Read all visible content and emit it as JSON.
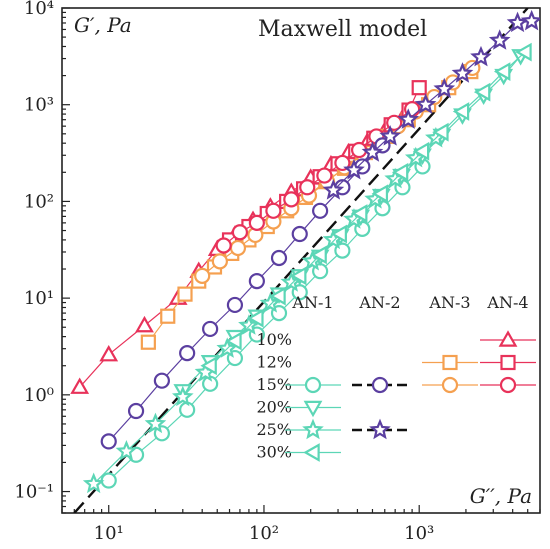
{
  "chart_data": {
    "type": "scatter",
    "title": "",
    "x_axis": {
      "label": "G′′, Pa",
      "scale": "log",
      "range": [
        5,
        6000
      ],
      "ticks": [
        {
          "value": 10,
          "label": "10¹"
        },
        {
          "value": 100,
          "label": "10²"
        },
        {
          "value": 1000,
          "label": "10³"
        }
      ]
    },
    "y_axis": {
      "label": "G′, Pa",
      "scale": "log",
      "range": [
        0.06,
        10000
      ],
      "ticks": [
        {
          "value": 0.1,
          "label": "10⁻¹"
        },
        {
          "value": 1,
          "label": "10⁰"
        },
        {
          "value": 10,
          "label": "10¹"
        },
        {
          "value": 100,
          "label": "10²"
        },
        {
          "value": 1000,
          "label": "10³"
        },
        {
          "value": 10000,
          "label": "10⁴"
        }
      ]
    },
    "grid": false,
    "maxwell_model": {
      "label": "Maxwell model",
      "points": [
        [
          6,
          0.06
        ],
        [
          5000,
          10000
        ]
      ],
      "style": "dashed",
      "color": "#111111"
    },
    "legend": {
      "placement": "bottom-right",
      "columns": [
        "AN-1",
        "AN-2",
        "AN-3",
        "AN-4"
      ],
      "rows": [
        "10%",
        "12%",
        "15%",
        "20%",
        "25%",
        "30%"
      ],
      "entries": [
        {
          "series": "AN-4 10%",
          "row": 0,
          "col": 3
        },
        {
          "series": "AN-3 12%",
          "row": 1,
          "col": 2
        },
        {
          "series": "AN-4 12%",
          "row": 1,
          "col": 3
        },
        {
          "series": "AN-1 15%",
          "row": 2,
          "col": 0
        },
        {
          "series": "AN-2 15%",
          "row": 2,
          "col": 1
        },
        {
          "series": "AN-3 15%",
          "row": 2,
          "col": 2
        },
        {
          "series": "AN-4 15%",
          "row": 2,
          "col": 3
        },
        {
          "series": "AN-1 20%",
          "row": 3,
          "col": 0
        },
        {
          "series": "AN-1 25%",
          "row": 4,
          "col": 0
        },
        {
          "series": "AN-2 25%",
          "row": 4,
          "col": 1
        },
        {
          "series": "AN-1 30%",
          "row": 5,
          "col": 0
        }
      ]
    },
    "series": [
      {
        "name": "AN-4 10%",
        "marker": "triangle",
        "color": "#e8325a",
        "connect": true,
        "linestyle": "solid",
        "points": [
          [
            6.5,
            1.2
          ],
          [
            10,
            2.6
          ],
          [
            17,
            5.2
          ],
          [
            28,
            10
          ],
          [
            38,
            19
          ],
          [
            50,
            32
          ],
          [
            65,
            45
          ],
          [
            85,
            64
          ],
          [
            110,
            88
          ],
          [
            150,
            125
          ],
          [
            200,
            175
          ],
          [
            270,
            240
          ],
          [
            350,
            320
          ],
          [
            470,
            430
          ],
          [
            620,
            590
          ],
          [
            800,
            780
          ]
        ]
      },
      {
        "name": "AN-3 12%",
        "marker": "square",
        "color": "#f5a050",
        "connect": true,
        "linestyle": "solid",
        "points": [
          [
            18,
            3.5
          ],
          [
            24,
            6.5
          ],
          [
            31,
            11
          ],
          [
            38,
            15
          ],
          [
            48,
            21
          ],
          [
            62,
            29
          ],
          [
            80,
            40
          ],
          [
            105,
            55
          ],
          [
            140,
            80
          ],
          [
            185,
            110
          ],
          [
            250,
            160
          ],
          [
            330,
            220
          ],
          [
            450,
            320
          ],
          [
            620,
            470
          ],
          [
            850,
            700
          ],
          [
            1150,
            1000
          ],
          [
            1550,
            1500
          ],
          [
            2150,
            2200
          ]
        ]
      },
      {
        "name": "AN-4 12%",
        "marker": "square",
        "color": "#e8325a",
        "connect": true,
        "linestyle": "solid",
        "points": [
          [
            60,
            40
          ],
          [
            80,
            55
          ],
          [
            105,
            75
          ],
          [
            140,
            100
          ],
          [
            180,
            135
          ],
          [
            230,
            180
          ],
          [
            300,
            245
          ],
          [
            390,
            330
          ],
          [
            510,
            450
          ],
          [
            660,
            620
          ],
          [
            860,
            880
          ],
          [
            1000,
            1500
          ]
        ]
      },
      {
        "name": "AN-3 15%",
        "marker": "circle",
        "color": "#f5a050",
        "connect": true,
        "linestyle": "solid",
        "points": [
          [
            40,
            17
          ],
          [
            52,
            24
          ],
          [
            68,
            33
          ],
          [
            88,
            45
          ],
          [
            115,
            62
          ],
          [
            150,
            85
          ],
          [
            195,
            115
          ],
          [
            255,
            160
          ],
          [
            330,
            225
          ],
          [
            430,
            310
          ],
          [
            560,
            430
          ],
          [
            730,
            600
          ],
          [
            950,
            850
          ],
          [
            1250,
            1200
          ],
          [
            1650,
            1700
          ],
          [
            2200,
            2400
          ]
        ]
      },
      {
        "name": "AN-4 15%",
        "marker": "circle",
        "color": "#e8325a",
        "connect": true,
        "linestyle": "solid",
        "points": [
          [
            55,
            35
          ],
          [
            70,
            48
          ],
          [
            90,
            60
          ],
          [
            115,
            80
          ],
          [
            150,
            105
          ],
          [
            190,
            140
          ],
          [
            245,
            185
          ],
          [
            320,
            250
          ],
          [
            410,
            340
          ],
          [
            530,
            470
          ],
          [
            690,
            650
          ],
          [
            900,
            900
          ]
        ]
      },
      {
        "name": "AN-1 15%",
        "marker": "circle",
        "color": "#5cd6b6",
        "connect": true,
        "linestyle": "solid",
        "points": [
          [
            10,
            0.13
          ],
          [
            15,
            0.24
          ],
          [
            22,
            0.4
          ],
          [
            32,
            0.7
          ],
          [
            45,
            1.3
          ],
          [
            65,
            2.4
          ],
          [
            90,
            4.2
          ],
          [
            125,
            7
          ],
          [
            170,
            11.5
          ],
          [
            230,
            19
          ],
          [
            320,
            31
          ],
          [
            430,
            52
          ],
          [
            580,
            85
          ],
          [
            780,
            140
          ],
          [
            1050,
            230
          ]
        ]
      },
      {
        "name": "AN-1 20%",
        "marker": "triangle-down",
        "color": "#5cd6b6",
        "connect": true,
        "linestyle": "solid",
        "points": [
          [
            30,
            1.1
          ],
          [
            45,
            2.2
          ],
          [
            65,
            4
          ],
          [
            90,
            6.5
          ],
          [
            125,
            11
          ],
          [
            170,
            17
          ],
          [
            230,
            27
          ],
          [
            310,
            44
          ],
          [
            420,
            70
          ],
          [
            570,
            115
          ],
          [
            770,
            185
          ],
          [
            1050,
            300
          ],
          [
            1400,
            480
          ],
          [
            1900,
            780
          ],
          [
            2600,
            1250
          ],
          [
            3500,
            2000
          ],
          [
            4500,
            3200
          ]
        ]
      },
      {
        "name": "AN-1 25%",
        "marker": "star",
        "color": "#5cd6b6",
        "connect": true,
        "linestyle": "solid",
        "points": [
          [
            8,
            0.12
          ],
          [
            13,
            0.26
          ],
          [
            20,
            0.5
          ],
          [
            30,
            0.95
          ],
          [
            42,
            1.7
          ],
          [
            58,
            3
          ],
          [
            80,
            5.2
          ],
          [
            110,
            8.8
          ],
          [
            150,
            14.5
          ],
          [
            205,
            24
          ],
          [
            280,
            40
          ],
          [
            380,
            65
          ],
          [
            520,
            105
          ],
          [
            700,
            170
          ],
          [
            950,
            280
          ],
          [
            1280,
            450
          ]
        ]
      },
      {
        "name": "AN-1 30%",
        "marker": "triangle-left",
        "color": "#5cd6b6",
        "connect": true,
        "linestyle": "solid",
        "points": [
          [
            45,
            2
          ],
          [
            65,
            3.6
          ],
          [
            90,
            6.2
          ],
          [
            125,
            10.5
          ],
          [
            170,
            17
          ],
          [
            230,
            28
          ],
          [
            310,
            46
          ],
          [
            420,
            75
          ],
          [
            570,
            120
          ],
          [
            770,
            200
          ],
          [
            1050,
            330
          ],
          [
            1400,
            520
          ],
          [
            1900,
            850
          ],
          [
            2600,
            1350
          ],
          [
            3500,
            2200
          ],
          [
            4800,
            3500
          ]
        ]
      },
      {
        "name": "AN-2 15%",
        "marker": "circle",
        "color": "#5b3fa0",
        "connect": true,
        "linestyle": "solid",
        "points": [
          [
            10,
            0.33
          ],
          [
            15,
            0.68
          ],
          [
            22,
            1.4
          ],
          [
            32,
            2.7
          ],
          [
            45,
            4.8
          ],
          [
            65,
            8.5
          ],
          [
            90,
            15
          ],
          [
            125,
            26
          ],
          [
            170,
            46
          ],
          [
            230,
            80
          ],
          [
            320,
            140
          ],
          [
            430,
            230
          ],
          [
            580,
            380
          ]
        ]
      },
      {
        "name": "AN-2 25%",
        "marker": "star",
        "color": "#5b3fa0",
        "connect": true,
        "linestyle": "solid",
        "points": [
          [
            280,
            130
          ],
          [
            380,
            210
          ],
          [
            500,
            320
          ],
          [
            650,
            470
          ],
          [
            850,
            700
          ],
          [
            1100,
            1000
          ],
          [
            1450,
            1450
          ],
          [
            1900,
            2100
          ],
          [
            2500,
            3100
          ],
          [
            3300,
            4600
          ],
          [
            4300,
            7000
          ],
          [
            5300,
            7300
          ]
        ]
      }
    ],
    "annotations": [
      {
        "text": "Maxwell model",
        "anchor": [
          500,
          6000
        ],
        "role": "model-label"
      }
    ]
  }
}
